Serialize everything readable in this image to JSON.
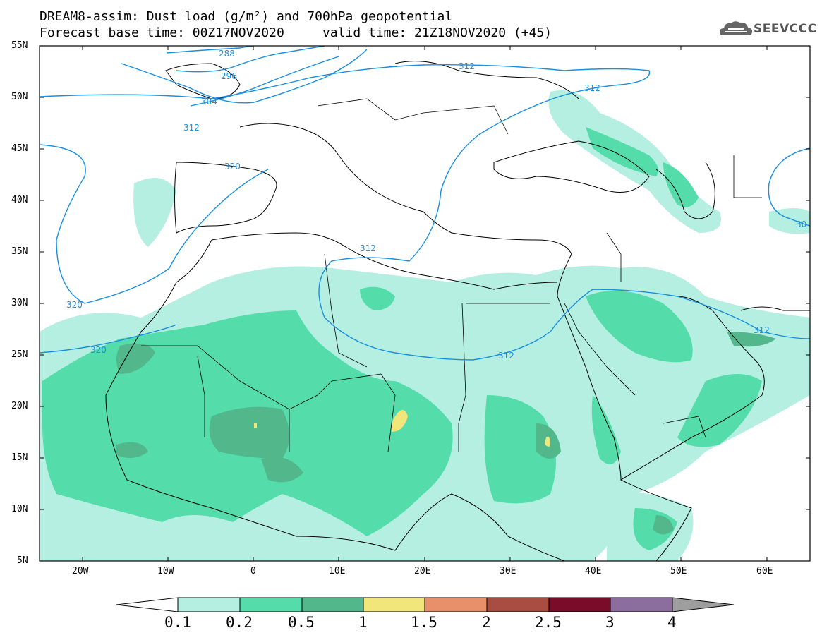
{
  "header": {
    "title_line1": "DREAM8-assim: Dust load (g/m²) and 700hPa geopotential",
    "title_line2": "Forecast base time: 00Z17NOV2020     valid time: 21Z18NOV2020 (+45)",
    "logo_text": "SEEVCCC"
  },
  "axes": {
    "lat_labels": [
      "55N",
      "50N",
      "45N",
      "40N",
      "35N",
      "30N",
      "25N",
      "20N",
      "15N",
      "10N",
      "5N"
    ],
    "lon_labels": [
      "20W",
      "10W",
      "0",
      "10E",
      "20E",
      "30E",
      "40E",
      "50E",
      "60E"
    ]
  },
  "contour_labels": [
    "288",
    "296",
    "304",
    "312",
    "320",
    "312",
    "312",
    "312",
    "312",
    "320",
    "320",
    "312",
    "30"
  ],
  "colorbar": {
    "labels": [
      "0.1",
      "0.2",
      "0.5",
      "1",
      "1.5",
      "2",
      "2.5",
      "3",
      "4"
    ],
    "colors": [
      "#b5efe1",
      "#55dcab",
      "#52b88c",
      "#f1e67a",
      "#e8906a",
      "#a94d42",
      "#7a0c2a",
      "#8c6e9e",
      "#9e9e9e"
    ]
  },
  "colors": {
    "contour": "#1a8fe0",
    "dust_low": "#b5efe1",
    "dust_mid": "#55dcab",
    "dust_high": "#52b88c",
    "dust_peak": "#f1e67a"
  }
}
